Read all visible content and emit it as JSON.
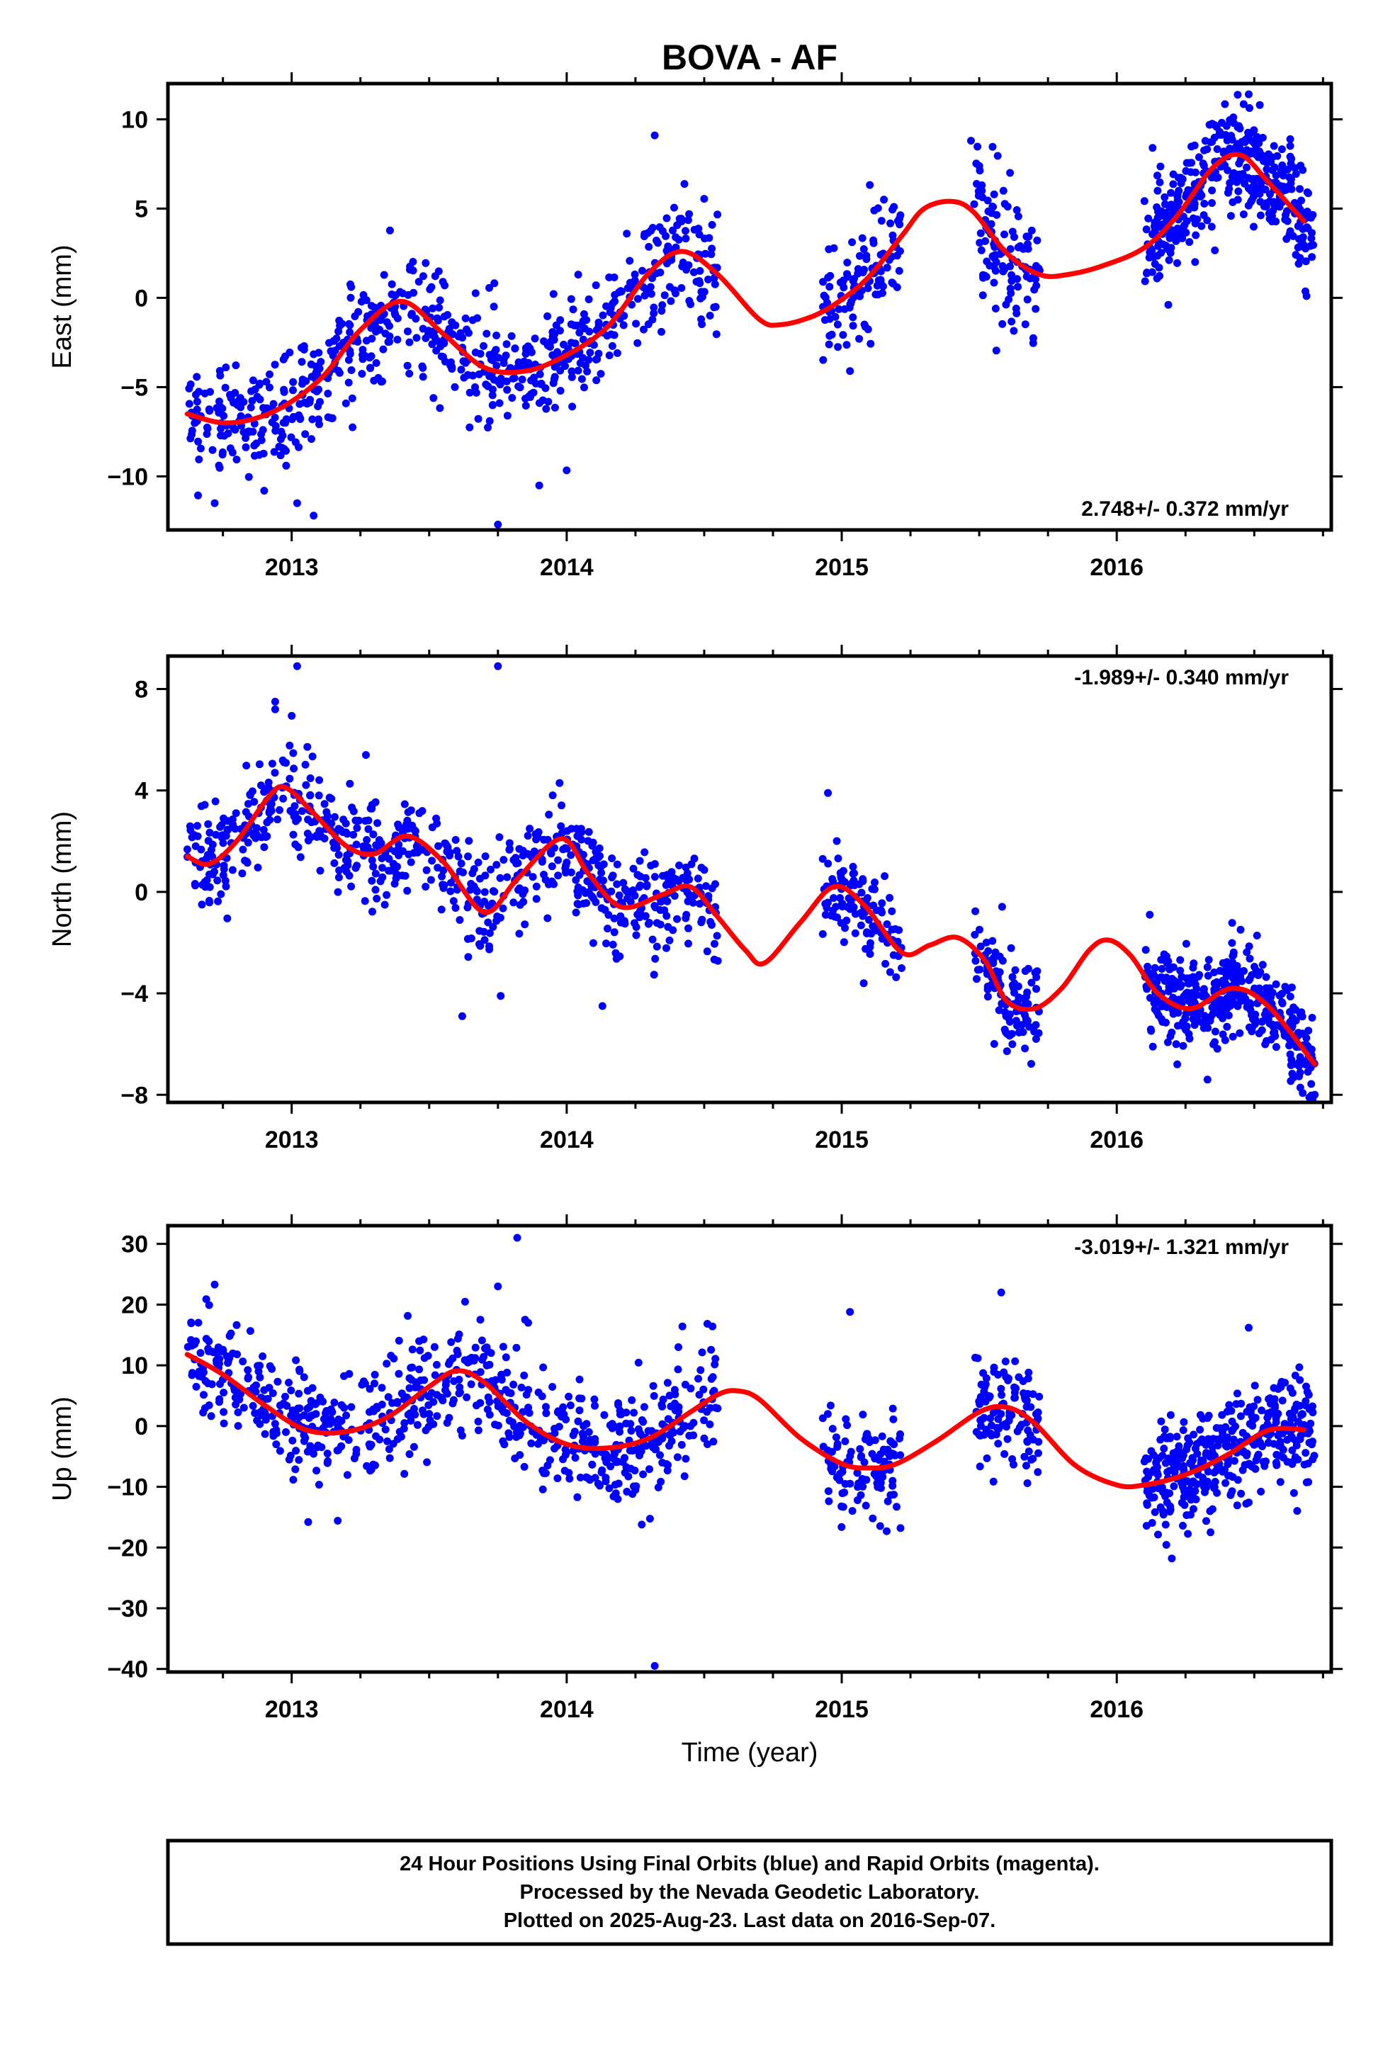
{
  "chart_data": {
    "type": "scatter",
    "title": "BOVA - AF",
    "xlabel": "Time (year)",
    "x_range": [
      2012.55,
      2016.78
    ],
    "x_ticks": [
      2013,
      2014,
      2015,
      2016
    ],
    "x_tick_labels": [
      "2013",
      "2014",
      "2015",
      "2016"
    ],
    "grid": false,
    "colors": {
      "points": "#0000ff",
      "fit": "#ff0000",
      "frame": "#000000"
    },
    "panels": [
      {
        "id": "east",
        "ylabel": "East (mm)",
        "ylim": [
          -13,
          12
        ],
        "y_ticks": [
          10,
          5,
          0,
          -5,
          -10
        ],
        "y_tick_labels": [
          "10",
          "5",
          "0",
          "−5",
          "−10"
        ],
        "rate_label": "2.748+/- 0.372 mm/yr",
        "rate_position": "bottom-right",
        "fit": {
          "x": [
            2012.62,
            2012.75,
            2012.88,
            2013.0,
            2013.12,
            2013.25,
            2013.4,
            2013.55,
            2013.7,
            2013.85,
            2014.0,
            2014.15,
            2014.3,
            2014.42,
            2014.55,
            2014.7,
            2014.78,
            2014.9,
            2015.0,
            2015.1,
            2015.22,
            2015.3,
            2015.4,
            2015.48,
            2015.6,
            2015.72,
            2015.82,
            2015.95,
            2016.1,
            2016.22,
            2016.35,
            2016.45,
            2016.55,
            2016.68
          ],
          "y": [
            -6.5,
            -7.0,
            -6.7,
            -5.8,
            -4.3,
            -1.8,
            -0.2,
            -2.0,
            -3.9,
            -4.1,
            -3.2,
            -1.6,
            1.4,
            2.6,
            1.3,
            -1.2,
            -1.5,
            -1.0,
            -0.1,
            1.2,
            3.5,
            5.0,
            5.4,
            4.8,
            2.5,
            1.3,
            1.3,
            1.8,
            2.8,
            4.6,
            7.3,
            8.0,
            6.5,
            4.3
          ]
        },
        "segments": [
          {
            "x0": 2012.62,
            "x1": 2014.55,
            "density": 690,
            "spread": 1.6
          },
          {
            "x0": 2014.93,
            "x1": 2015.22,
            "density": 110,
            "spread": 1.6
          },
          {
            "x0": 2015.48,
            "x1": 2015.72,
            "density": 110,
            "spread": 1.6
          },
          {
            "x0": 2016.1,
            "x1": 2016.72,
            "density": 400,
            "spread": 1.5
          }
        ],
        "outliers": [
          [
            2014.32,
            9.1
          ],
          [
            2015.47,
            8.8
          ],
          [
            2016.48,
            11.4
          ],
          [
            2013.75,
            -12.7
          ],
          [
            2013.08,
            -12.2
          ],
          [
            2013.02,
            -11.5
          ],
          [
            2012.9,
            -10.8
          ],
          [
            2012.72,
            -11.5
          ],
          [
            2015.03,
            -4.1
          ],
          [
            2015.56,
            -0.6
          ],
          [
            2013.72,
            -6.9
          ],
          [
            2016.52,
            10.8
          ],
          [
            2012.98,
            -9.4
          ],
          [
            2016.69,
            0.1
          ]
        ]
      },
      {
        "id": "north",
        "ylabel": "North (mm)",
        "ylim": [
          -8.3,
          9.3
        ],
        "y_ticks": [
          8,
          4,
          0,
          -4,
          -8
        ],
        "y_tick_labels": [
          "8",
          "4",
          "0",
          "−4",
          "−8"
        ],
        "rate_label": "-1.989+/- 0.340 mm/yr",
        "rate_position": "top-right",
        "fit": {
          "x": [
            2012.62,
            2012.7,
            2012.8,
            2012.92,
            2012.98,
            2013.08,
            2013.2,
            2013.3,
            2013.42,
            2013.55,
            2013.7,
            2013.82,
            2013.98,
            2014.08,
            2014.2,
            2014.35,
            2014.45,
            2014.55,
            2014.65,
            2014.72,
            2014.85,
            2014.97,
            2015.08,
            2015.22,
            2015.32,
            2015.42,
            2015.52,
            2015.6,
            2015.7,
            2015.8,
            2015.9,
            2015.97,
            2016.05,
            2016.15,
            2016.27,
            2016.42,
            2016.55,
            2016.72
          ],
          "y": [
            1.4,
            1.1,
            2.0,
            3.8,
            4.1,
            3.1,
            1.8,
            1.5,
            2.2,
            1.2,
            -0.8,
            0.5,
            2.1,
            0.7,
            -0.6,
            -0.1,
            0.2,
            -1.0,
            -2.3,
            -2.8,
            -1.2,
            0.2,
            -0.5,
            -2.4,
            -2.1,
            -1.8,
            -2.7,
            -4.3,
            -4.6,
            -3.8,
            -2.3,
            -1.9,
            -2.5,
            -4.0,
            -4.6,
            -3.8,
            -4.5,
            -6.8
          ]
        },
        "segments": [
          {
            "x0": 2012.62,
            "x1": 2014.55,
            "density": 690,
            "spread": 0.95
          },
          {
            "x0": 2014.93,
            "x1": 2015.22,
            "density": 110,
            "spread": 0.9
          },
          {
            "x0": 2015.48,
            "x1": 2015.72,
            "density": 110,
            "spread": 0.9
          },
          {
            "x0": 2016.1,
            "x1": 2016.72,
            "density": 400,
            "spread": 0.9
          }
        ],
        "outliers": [
          [
            2013.02,
            8.9
          ],
          [
            2013.75,
            8.9
          ],
          [
            2012.94,
            7.5
          ],
          [
            2012.94,
            7.2
          ],
          [
            2013.27,
            5.4
          ],
          [
            2013.62,
            -4.9
          ],
          [
            2014.13,
            -4.5
          ],
          [
            2013.76,
            -4.1
          ],
          [
            2016.72,
            -8.0
          ],
          [
            2016.33,
            -7.4
          ],
          [
            2015.08,
            -3.6
          ],
          [
            2014.95,
            3.9
          ],
          [
            2016.12,
            -0.9
          ],
          [
            2016.22,
            -6.8
          ]
        ]
      },
      {
        "id": "up",
        "ylabel": "Up (mm)",
        "ylim": [
          -40.5,
          33
        ],
        "y_ticks": [
          30,
          20,
          10,
          0,
          -10,
          -20,
          -30,
          -40
        ],
        "y_tick_labels": [
          "30",
          "20",
          "10",
          "0",
          "−10",
          "−20",
          "−30",
          "−40"
        ],
        "rate_label": "-3.019+/- 1.321 mm/yr",
        "rate_position": "top-right",
        "fit": {
          "x": [
            2012.62,
            2012.75,
            2012.9,
            2013.05,
            2013.2,
            2013.35,
            2013.5,
            2013.6,
            2013.7,
            2013.85,
            2014.0,
            2014.15,
            2014.3,
            2014.45,
            2014.55,
            2014.62,
            2014.7,
            2014.85,
            2015.0,
            2015.1,
            2015.2,
            2015.35,
            2015.5,
            2015.6,
            2015.7,
            2015.85,
            2016.0,
            2016.1,
            2016.25,
            2016.4,
            2016.55,
            2016.68
          ],
          "y": [
            11.8,
            8.5,
            3.5,
            -0.6,
            -0.9,
            1.5,
            6.5,
            9.1,
            7.2,
            0.8,
            -3.0,
            -3.6,
            -2.0,
            2.3,
            5.2,
            5.8,
            4.4,
            -2.0,
            -6.2,
            -6.9,
            -6.2,
            -2.3,
            2.3,
            3.1,
            0.5,
            -6.5,
            -9.7,
            -9.7,
            -8.0,
            -4.8,
            -0.7,
            -0.6
          ]
        },
        "segments": [
          {
            "x0": 2012.62,
            "x1": 2014.55,
            "density": 690,
            "spread": 4.6
          },
          {
            "x0": 2014.93,
            "x1": 2015.22,
            "density": 110,
            "spread": 4.3
          },
          {
            "x0": 2015.48,
            "x1": 2015.72,
            "density": 110,
            "spread": 4.3
          },
          {
            "x0": 2016.1,
            "x1": 2016.72,
            "density": 400,
            "spread": 4.3
          }
        ],
        "outliers": [
          [
            2013.82,
            31.0
          ],
          [
            2014.32,
            -39.5
          ],
          [
            2012.72,
            23.3
          ],
          [
            2013.75,
            23.0
          ],
          [
            2015.58,
            22.0
          ],
          [
            2015.03,
            18.8
          ],
          [
            2013.06,
            -15.8
          ],
          [
            2016.2,
            -21.8
          ],
          [
            2016.48,
            16.2
          ],
          [
            2014.25,
            -10.5
          ],
          [
            2013.86,
            17.0
          ]
        ]
      }
    ]
  },
  "footer": {
    "line1": "24 Hour Positions Using Final Orbits (blue) and Rapid Orbits (magenta).",
    "line2": "Processed by the Nevada Geodetic Laboratory.",
    "line3": "Plotted on 2025-Aug-23. Last data on 2016-Sep-07."
  }
}
